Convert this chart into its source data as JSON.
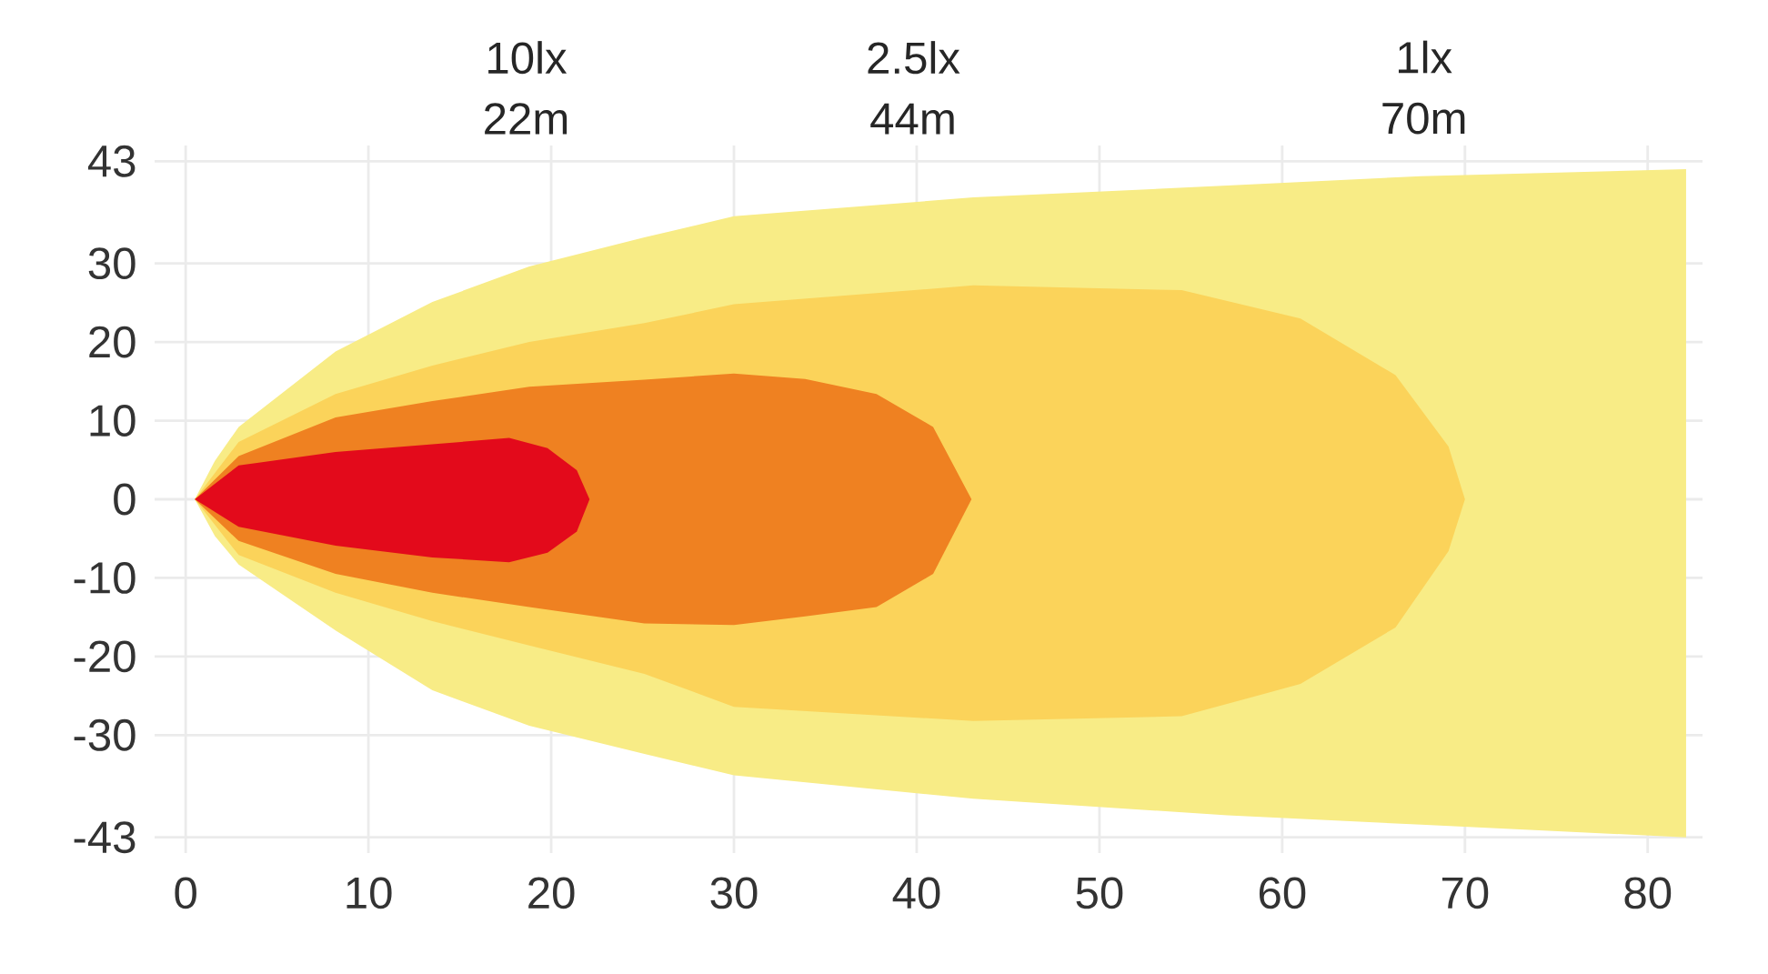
{
  "chart_data": {
    "type": "area",
    "annotations": [
      "10lx 22m",
      "2.5lx 44m",
      "1lx 70m"
    ],
    "series": [
      {
        "color": "#f8ec86",
        "x": [
          0.5,
          1.6,
          2.9,
          8.2,
          13.5,
          18.8,
          25.1,
          30,
          43.1,
          57.0,
          67.6,
          82.1
        ],
        "values": [
          0,
          4.9,
          9.2,
          18.8,
          25.1,
          29.6,
          33.3,
          36.0,
          38.4,
          39.9,
          41.1,
          42.0
        ]
      },
      {
        "color": "#f8ec86",
        "x": [
          0.5,
          1.6,
          2.9,
          8.2,
          13.5,
          18.8,
          25.1,
          30,
          43.1,
          57.0,
          67.6,
          82.1
        ],
        "values": [
          0,
          -4.7,
          -8.3,
          -16.7,
          -24.3,
          -28.8,
          -32.4,
          -35.1,
          -38.1,
          -40.2,
          -41.4,
          -43.0
        ]
      },
      {
        "color": "#fbd35a",
        "x": [
          0.5,
          2.9,
          8.2,
          13.5,
          18.8,
          25.1,
          30,
          43.1,
          54.5,
          61.0,
          66.2,
          69.1,
          70.0
        ],
        "values": [
          0,
          7.3,
          13.4,
          17.0,
          20.0,
          22.4,
          24.8,
          27.2,
          26.6,
          23.0,
          15.8,
          6.7,
          0
        ]
      },
      {
        "color": "#fbd35a",
        "x": [
          0.5,
          2.9,
          8.2,
          13.5,
          18.8,
          25.1,
          30,
          43.1,
          54.5,
          61.0,
          66.2,
          69.1,
          70.0
        ],
        "values": [
          0,
          -7.1,
          -11.9,
          -15.5,
          -18.6,
          -22.2,
          -26.4,
          -28.2,
          -27.6,
          -23.5,
          -16.3,
          -6.6,
          0
        ]
      },
      {
        "color": "#ef8121",
        "x": [
          0.5,
          2.9,
          8.2,
          13.5,
          18.8,
          25.1,
          30,
          33.9,
          37.8,
          40.9,
          43.0
        ],
        "values": [
          0,
          5.5,
          10.4,
          12.5,
          14.3,
          15.2,
          16.0,
          15.3,
          13.4,
          9.2,
          0
        ]
      },
      {
        "color": "#ef8121",
        "x": [
          0.5,
          2.9,
          8.2,
          13.5,
          18.8,
          25.1,
          30,
          33.9,
          37.8,
          40.9,
          43.0
        ],
        "values": [
          0,
          -5.3,
          -9.5,
          -11.9,
          -13.7,
          -15.8,
          -16.0,
          -14.9,
          -13.7,
          -9.5,
          0
        ]
      },
      {
        "color": "#e30a1b",
        "x": [
          0.5,
          2.9,
          8.2,
          13.5,
          17.7,
          19.8,
          21.4,
          22.1
        ],
        "values": [
          0,
          4.3,
          6.0,
          7.0,
          7.8,
          6.5,
          3.7,
          0
        ]
      },
      {
        "color": "#e30a1b",
        "x": [
          0.5,
          2.9,
          8.2,
          13.5,
          17.7,
          19.8,
          21.4,
          22.1
        ],
        "values": [
          0,
          -3.5,
          -5.9,
          -7.4,
          -8.0,
          -6.8,
          -4.1,
          0
        ]
      }
    ],
    "xlim": [
      -1.7,
      83
    ],
    "ylim": [
      -45,
      45
    ],
    "xticks": [
      0,
      10,
      20,
      30,
      40,
      50,
      60,
      70,
      80
    ],
    "yticks": [
      -43,
      -30,
      -20,
      -10,
      0,
      10,
      20,
      30,
      43
    ],
    "grid": true
  }
}
